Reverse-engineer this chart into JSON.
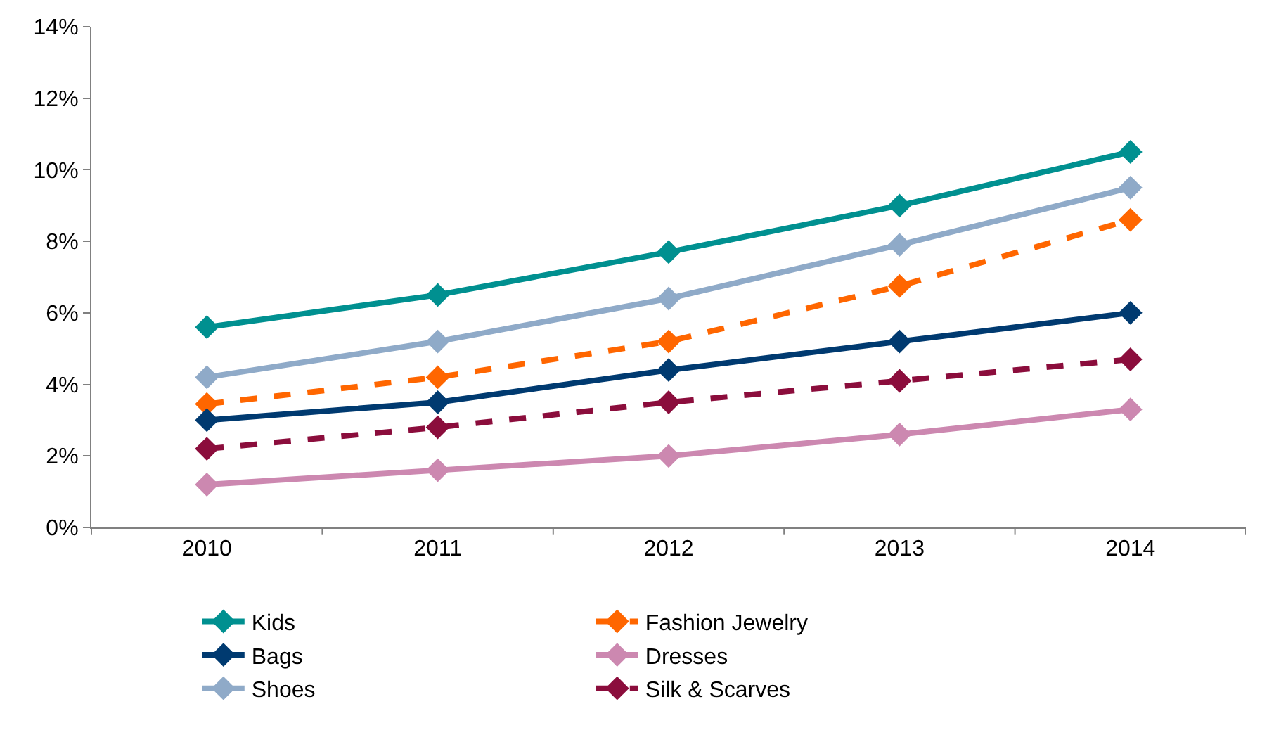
{
  "chart_data": {
    "type": "line",
    "categories": [
      "2010",
      "2011",
      "2012",
      "2013",
      "2014"
    ],
    "series": [
      {
        "name": "Kids",
        "color": "#009090",
        "values": [
          5.6,
          6.5,
          7.7,
          9.0,
          10.5
        ],
        "line_style": "solid"
      },
      {
        "name": "Fashion Jewelry",
        "color": "#ff6600",
        "values": [
          3.45,
          4.2,
          5.2,
          6.75,
          8.6
        ],
        "line_style": "dashed"
      },
      {
        "name": "Bags",
        "color": "#003a70",
        "values": [
          3.0,
          3.5,
          4.4,
          5.2,
          6.0
        ],
        "line_style": "solid"
      },
      {
        "name": "Dresses",
        "color": "#cc88b0",
        "values": [
          1.2,
          1.6,
          2.0,
          2.6,
          3.3
        ],
        "line_style": "solid"
      },
      {
        "name": "Shoes",
        "color": "#8faac8",
        "values": [
          4.2,
          5.2,
          6.4,
          7.9,
          9.5
        ],
        "line_style": "solid"
      },
      {
        "name": "Silk & Scarves",
        "color": "#8b0d3c",
        "values": [
          2.2,
          2.8,
          3.5,
          4.1,
          4.7
        ],
        "line_style": "dashed"
      }
    ],
    "ylim": [
      0,
      14
    ],
    "yticks": [
      {
        "value": 0,
        "label": "0%"
      },
      {
        "value": 2,
        "label": "2%"
      },
      {
        "value": 4,
        "label": "4%"
      },
      {
        "value": 6,
        "label": "6%"
      },
      {
        "value": 8,
        "label": "8%"
      },
      {
        "value": 10,
        "label": "10%"
      },
      {
        "value": 12,
        "label": "12%"
      },
      {
        "value": 14,
        "label": "14%"
      }
    ],
    "legend": "bottom",
    "marker": "diamond"
  }
}
